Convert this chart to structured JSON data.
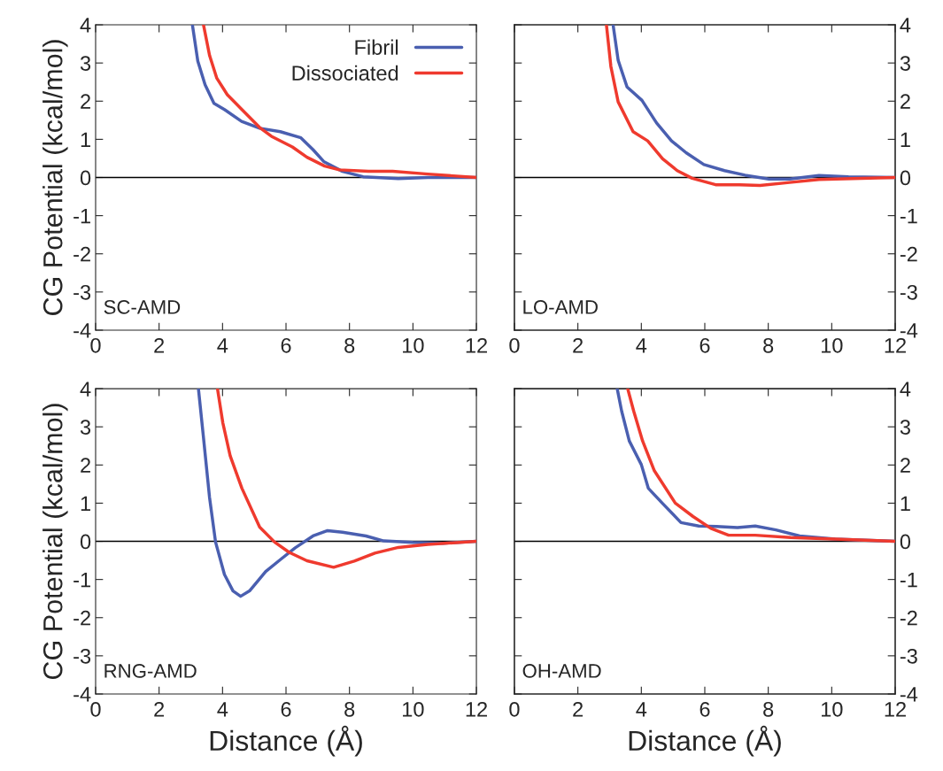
{
  "chart_data": [
    {
      "type": "line",
      "xlabel": null,
      "ylabel": "CG Potential (kcal/mol)",
      "xlim": [
        0,
        12
      ],
      "xticks": [
        0,
        2,
        4,
        6,
        8,
        10,
        12
      ],
      "ylim": [
        -4,
        4
      ],
      "yticks": [
        -4,
        -3,
        -2,
        -1,
        0,
        1,
        2,
        3,
        4
      ],
      "legend": "top right",
      "annotations": [
        "SC-AMD"
      ],
      "ref_lines": [
        {
          "axis": "y",
          "value": 0,
          "color": "#000000"
        }
      ],
      "series": [
        {
          "name": "Fibril",
          "color": "#4a5fb0",
          "x": [
            3.05,
            3.22,
            3.45,
            3.73,
            4.06,
            4.6,
            5.17,
            5.82,
            6.47,
            6.85,
            7.2,
            7.78,
            8.43,
            9.54,
            10.47,
            12
          ],
          "values": [
            4,
            3.05,
            2.43,
            1.94,
            1.78,
            1.47,
            1.29,
            1.2,
            1.04,
            0.73,
            0.41,
            0.16,
            0.02,
            -0.03,
            0,
            0
          ]
        },
        {
          "name": "Dissociated",
          "color": "#ef3a2e",
          "x": [
            3.4,
            3.59,
            3.82,
            4.15,
            4.61,
            5.17,
            5.54,
            6.2,
            6.66,
            7.22,
            7.68,
            8.6,
            9.36,
            10.47,
            12
          ],
          "values": [
            4,
            3.2,
            2.6,
            2.17,
            1.78,
            1.31,
            1.08,
            0.8,
            0.53,
            0.3,
            0.2,
            0.16,
            0.16,
            0.09,
            0
          ]
        }
      ]
    },
    {
      "type": "line",
      "xlim": [
        0,
        12
      ],
      "xticks": [
        0,
        2,
        4,
        6,
        8,
        10,
        12
      ],
      "y2lim": [
        -4,
        4
      ],
      "y2ticks": [
        -4,
        -3,
        -2,
        -1,
        0,
        1,
        2,
        3,
        4
      ],
      "annotations": [
        "LO-AMD"
      ],
      "ref_lines": [
        {
          "axis": "y2",
          "value": 0,
          "color": "#000000"
        }
      ],
      "series": [
        {
          "color": "#4a5fb0",
          "axis": "y2",
          "x": [
            3.11,
            3.27,
            3.55,
            4.02,
            4.48,
            4.95,
            5.41,
            5.97,
            6.62,
            7.27,
            8.02,
            8.67,
            9.6,
            10.53,
            12
          ],
          "values": [
            4,
            3.07,
            2.37,
            2.02,
            1.43,
            0.96,
            0.65,
            0.34,
            0.18,
            0.06,
            -0.04,
            -0.04,
            0.05,
            0.02,
            0
          ]
        },
        {
          "color": "#ef3a2e",
          "axis": "y2",
          "x": [
            2.9,
            3.04,
            3.27,
            3.74,
            4.2,
            4.67,
            5.13,
            5.6,
            6.34,
            7.09,
            7.74,
            8.67,
            9.6,
            12
          ],
          "values": [
            4,
            2.91,
            1.98,
            1.2,
            0.96,
            0.49,
            0.18,
            -0.02,
            -0.19,
            -0.19,
            -0.21,
            -0.13,
            -0.05,
            0
          ]
        }
      ]
    },
    {
      "type": "line",
      "xlabel": "Distance (Å)",
      "ylabel": "CG Potential (kcal/mol)",
      "xlim": [
        0,
        12
      ],
      "xticks": [
        0,
        2,
        4,
        6,
        8,
        10,
        12
      ],
      "ylim": [
        -4,
        4
      ],
      "yticks": [
        -4,
        -3,
        -2,
        -1,
        0,
        1,
        2,
        3,
        4
      ],
      "annotations": [
        "RNG-AMD"
      ],
      "ref_lines": [
        {
          "axis": "y",
          "value": 0,
          "color": "#000000"
        }
      ],
      "series": [
        {
          "color": "#4a5fb0",
          "x": [
            3.24,
            3.4,
            3.59,
            3.78,
            4.06,
            4.33,
            4.57,
            4.85,
            5.36,
            5.82,
            6.29,
            6.85,
            7.31,
            7.78,
            8.52,
            9.08,
            10.0,
            10.94,
            12
          ],
          "values": [
            4,
            2.71,
            1.15,
            -0.02,
            -0.87,
            -1.3,
            -1.44,
            -1.3,
            -0.79,
            -0.48,
            -0.17,
            0.14,
            0.28,
            0.24,
            0.14,
            0.01,
            -0.03,
            -0.05,
            0
          ]
        },
        {
          "color": "#ef3a2e",
          "x": [
            3.84,
            4.01,
            4.24,
            4.61,
            5.17,
            5.64,
            6.1,
            6.66,
            7.5,
            8.15,
            8.8,
            9.54,
            10.47,
            12
          ],
          "values": [
            4,
            3.1,
            2.24,
            1.39,
            0.37,
            -0.02,
            -0.29,
            -0.51,
            -0.68,
            -0.52,
            -0.31,
            -0.16,
            -0.08,
            0
          ]
        }
      ]
    },
    {
      "type": "line",
      "xlabel": "Distance (Å)",
      "xlim": [
        0,
        12
      ],
      "xticks": [
        0,
        2,
        4,
        6,
        8,
        10,
        12
      ],
      "y2lim": [
        -4,
        4
      ],
      "y2ticks": [
        -4,
        -3,
        -2,
        -1,
        0,
        1,
        2,
        3,
        4
      ],
      "annotations": [
        "OH-AMD"
      ],
      "ref_lines": [
        {
          "axis": "y2",
          "value": 0,
          "color": "#000000"
        }
      ],
      "series": [
        {
          "color": "#4a5fb0",
          "axis": "y2",
          "x": [
            3.24,
            3.38,
            3.62,
            4.0,
            4.22,
            4.66,
            5.25,
            5.81,
            6.37,
            7.03,
            7.59,
            8.24,
            8.99,
            10.11,
            12
          ],
          "values": [
            4,
            3.41,
            2.63,
            2.01,
            1.39,
            1.0,
            0.49,
            0.4,
            0.39,
            0.36,
            0.4,
            0.3,
            0.14,
            0.06,
            0
          ]
        },
        {
          "color": "#ef3a2e",
          "axis": "y2",
          "x": [
            3.57,
            3.76,
            4.04,
            4.41,
            5.07,
            5.63,
            6.19,
            6.75,
            7.59,
            8.71,
            10.11,
            12
          ],
          "values": [
            4,
            3.41,
            2.63,
            1.85,
            1.0,
            0.65,
            0.34,
            0.16,
            0.16,
            0.1,
            0.06,
            0
          ]
        }
      ]
    }
  ]
}
